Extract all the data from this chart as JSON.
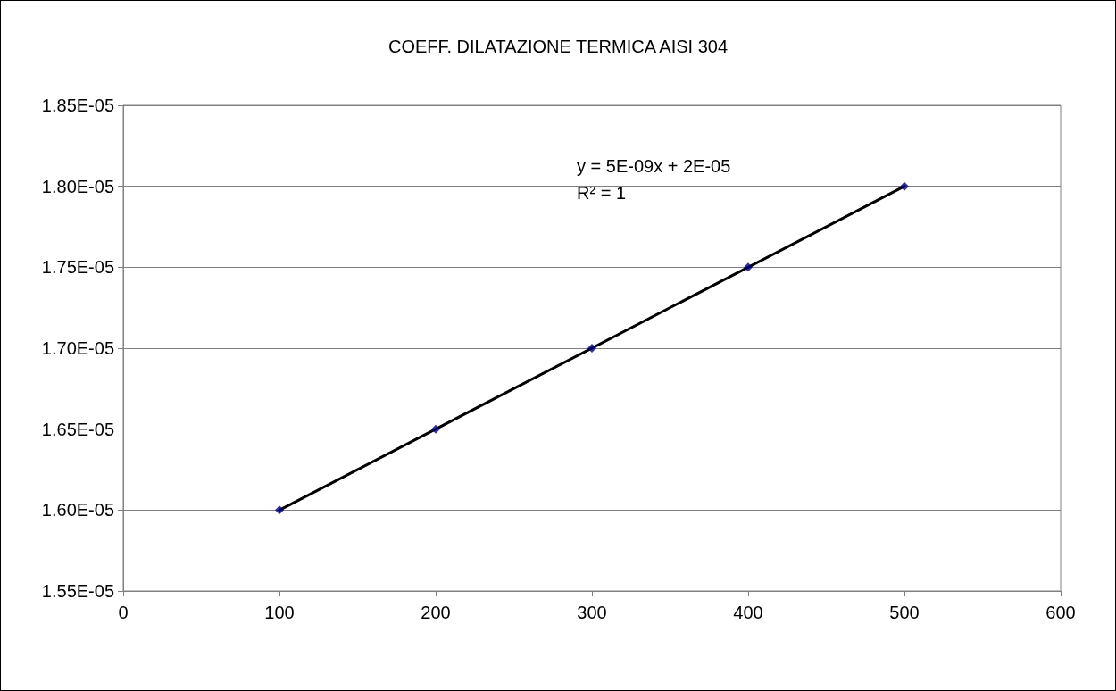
{
  "chart_data": {
    "type": "scatter",
    "title": "COEFF. DILATAZIONE TERMICA AISI 304",
    "x": [
      100,
      200,
      300,
      400,
      500
    ],
    "series": [
      {
        "color": "#000080",
        "values": [
          1.6e-05,
          1.65e-05,
          1.7e-05,
          1.75e-05,
          1.8e-05
        ]
      },
      {
        "type": "line",
        "color": "#000000",
        "x": [
          100,
          500
        ],
        "values": [
          1.6e-05,
          1.8e-05
        ],
        "marker": "none"
      }
    ],
    "xlim": [
      0,
      600
    ],
    "xticks": [
      0,
      100,
      200,
      300,
      400,
      500,
      600
    ],
    "ylim": [
      1.55e-05,
      1.85e-05
    ],
    "yticks": [
      {
        "value": 1.55e-05,
        "label": "1.55E-05"
      },
      {
        "value": 1.6e-05,
        "label": "1.60E-05"
      },
      {
        "value": 1.65e-05,
        "label": "1.65E-05"
      },
      {
        "value": 1.7e-05,
        "label": "1.70E-05"
      },
      {
        "value": 1.75e-05,
        "label": "1.75E-05"
      },
      {
        "value": 1.8e-05,
        "label": "1.80E-05"
      },
      {
        "value": 1.85e-05,
        "label": "1.85E-05"
      }
    ],
    "annotations": [
      "y = 5E-09x + 2E-05",
      "R² = 1"
    ],
    "grid": "y",
    "marker": "diamond",
    "line_style": "solid"
  }
}
